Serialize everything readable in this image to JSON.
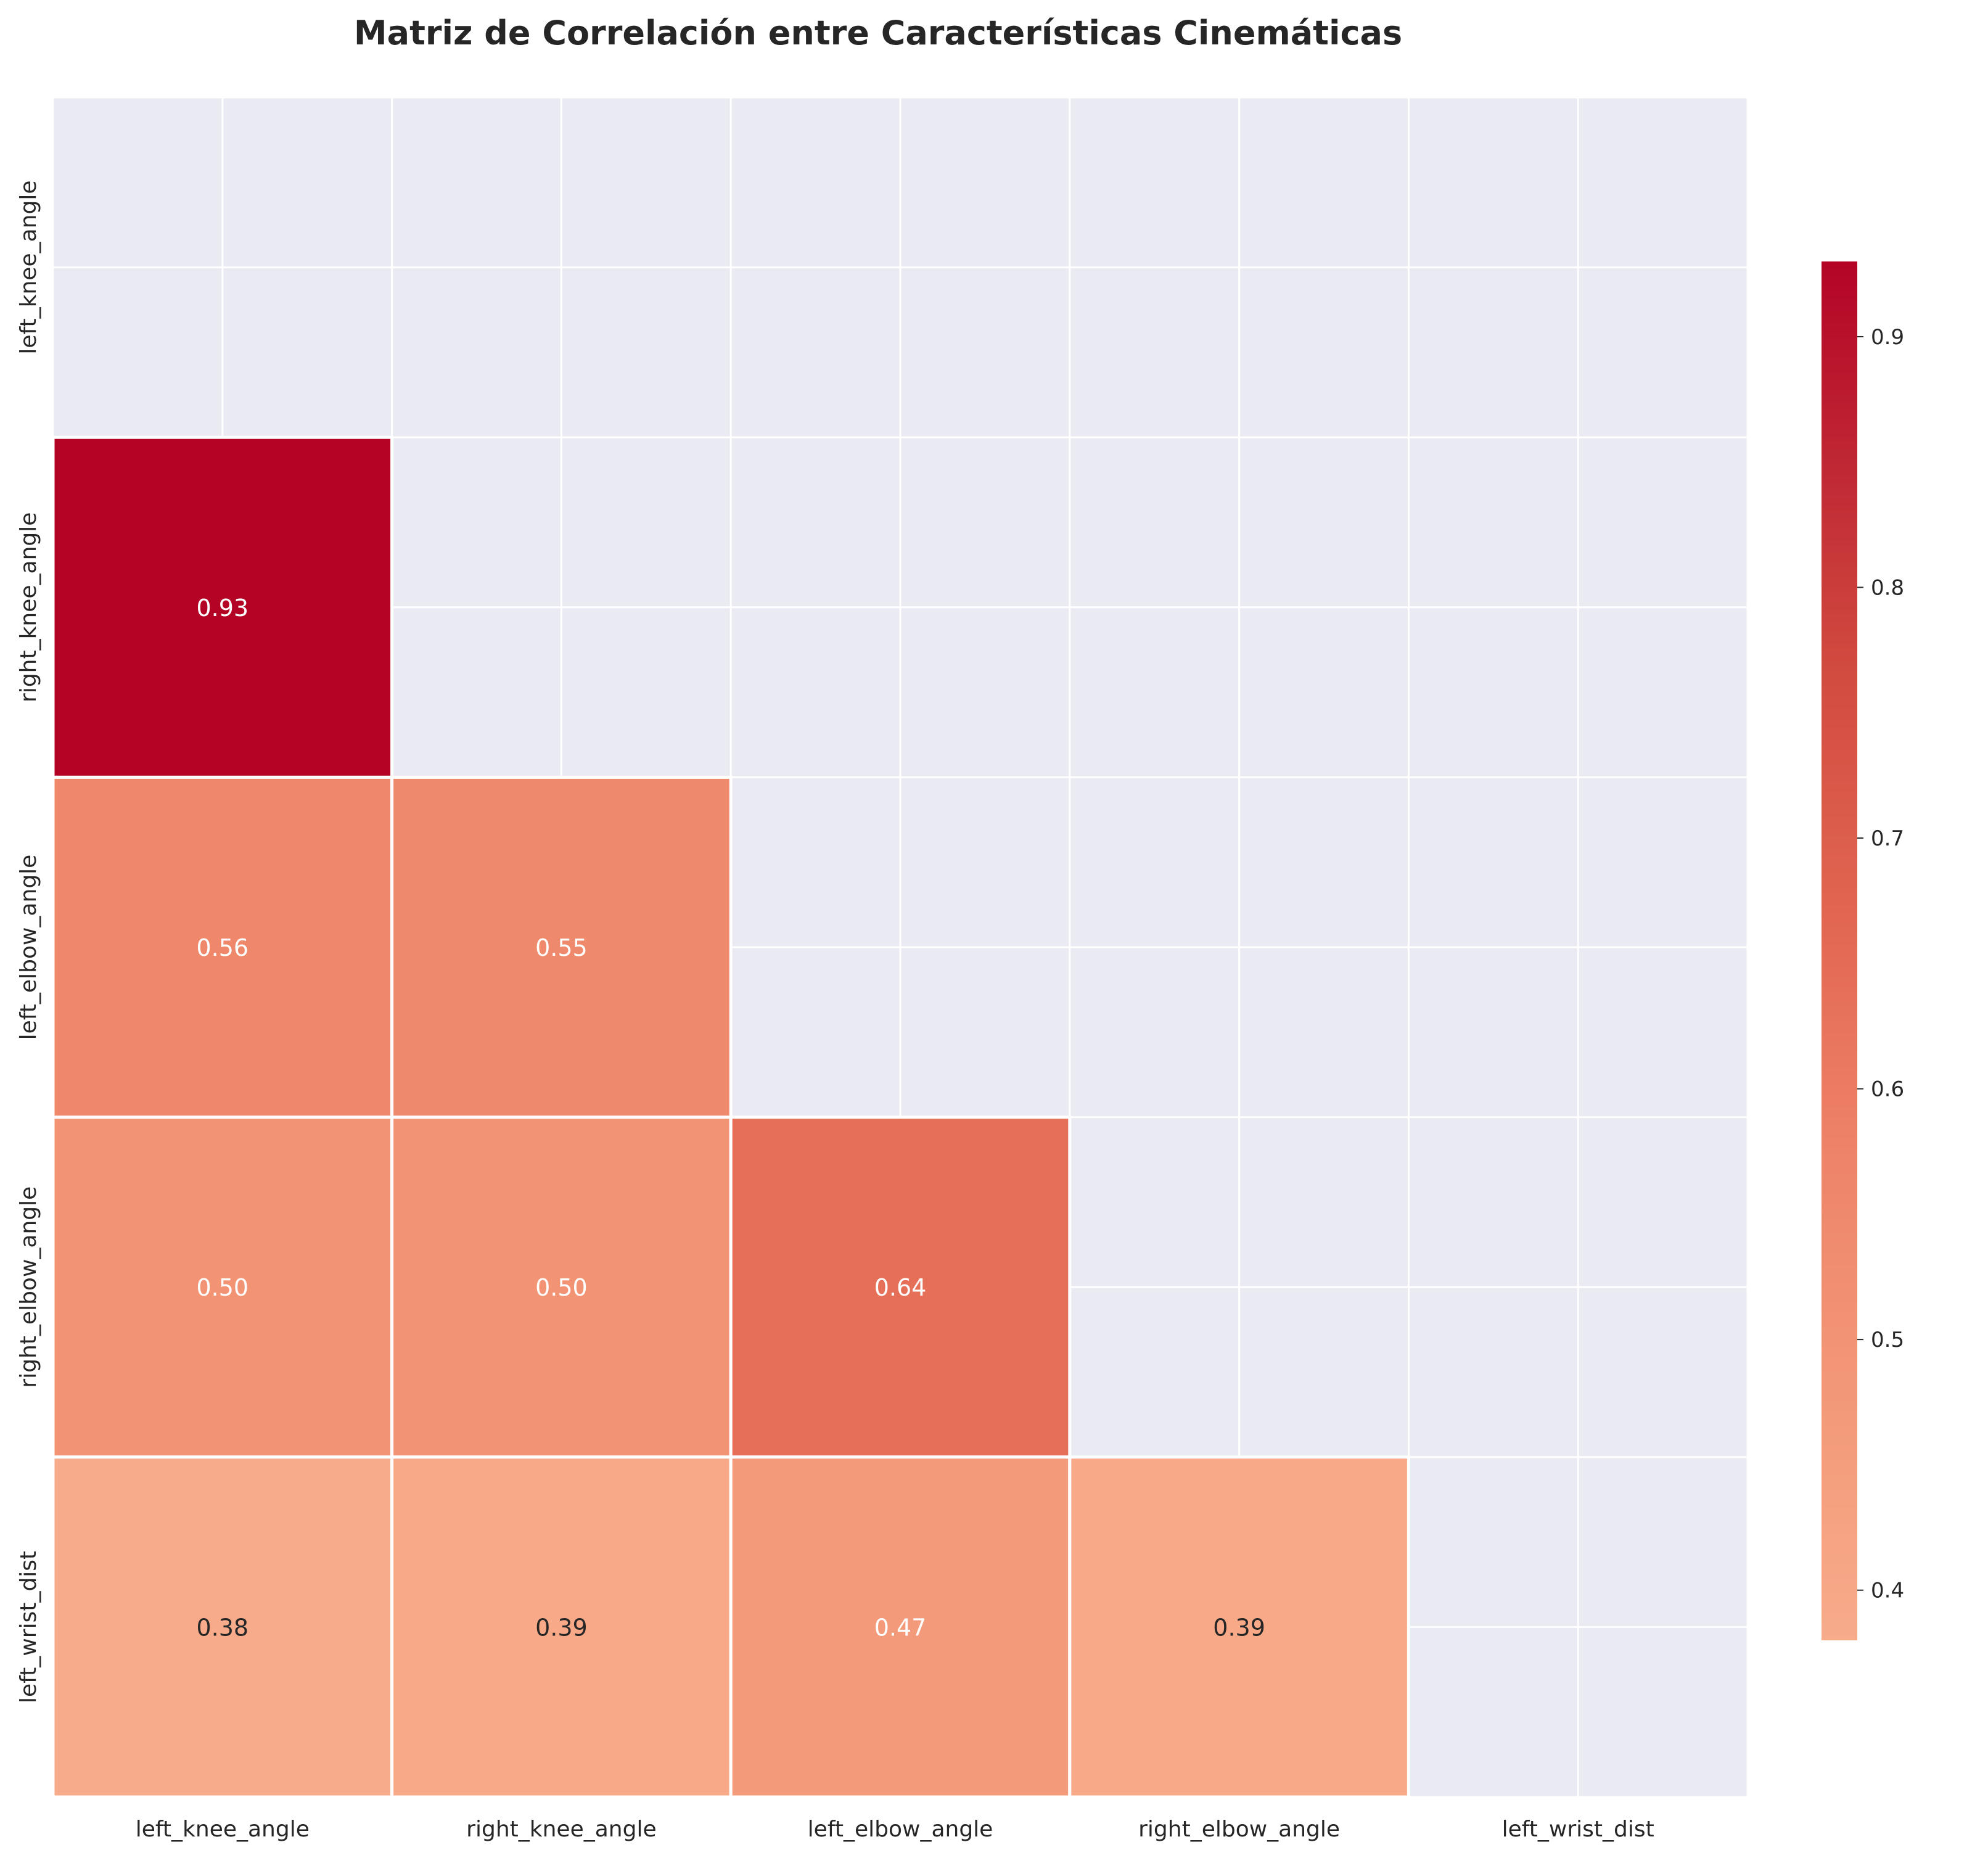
{
  "chart_data": {
    "type": "heatmap",
    "title": "Matriz de Correlación entre Características Cinemáticas",
    "xlabel": "",
    "ylabel": "",
    "variables": [
      "left_knee_angle",
      "right_knee_angle",
      "left_elbow_angle",
      "right_elbow_angle",
      "left_wrist_dist"
    ],
    "mask": "upper-triangle-and-diagonal",
    "cells": [
      {
        "row": 1,
        "col": 0,
        "value": 0.93,
        "label": "0.93"
      },
      {
        "row": 2,
        "col": 0,
        "value": 0.56,
        "label": "0.56"
      },
      {
        "row": 2,
        "col": 1,
        "value": 0.55,
        "label": "0.55"
      },
      {
        "row": 3,
        "col": 0,
        "value": 0.5,
        "label": "0.50"
      },
      {
        "row": 3,
        "col": 1,
        "value": 0.5,
        "label": "0.50"
      },
      {
        "row": 3,
        "col": 2,
        "value": 0.64,
        "label": "0.64"
      },
      {
        "row": 4,
        "col": 0,
        "value": 0.38,
        "label": "0.38"
      },
      {
        "row": 4,
        "col": 1,
        "value": 0.39,
        "label": "0.39"
      },
      {
        "row": 4,
        "col": 2,
        "value": 0.47,
        "label": "0.47"
      },
      {
        "row": 4,
        "col": 3,
        "value": 0.39,
        "label": "0.39"
      }
    ],
    "colorbar": {
      "range": [
        0.38,
        0.93
      ],
      "ticks": [
        "0.4",
        "0.5",
        "0.6",
        "0.7",
        "0.8",
        "0.9"
      ],
      "colormap": "coolwarm-upper",
      "low_color": "#f7ab8a",
      "high_color": "#b40426"
    },
    "grid": true,
    "legend": "colorbar-right"
  }
}
